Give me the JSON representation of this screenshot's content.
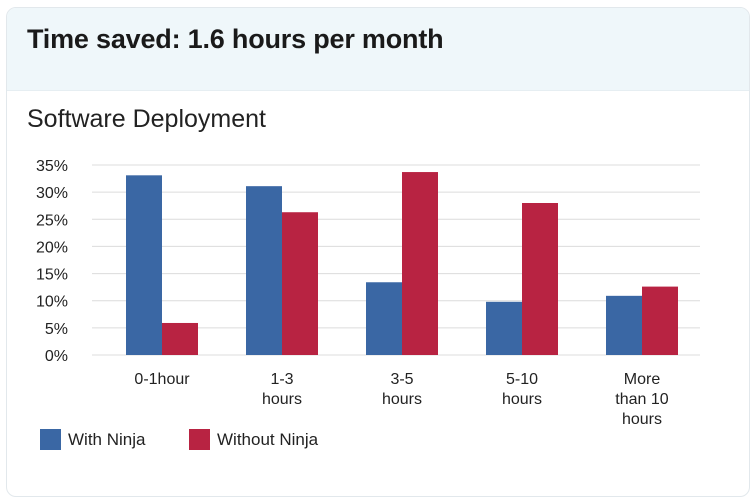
{
  "header": {
    "title": "Time saved: 1.6 hours per month"
  },
  "chart_data": {
    "type": "bar",
    "title": "Software Deployment",
    "categories": [
      [
        "0-1hour"
      ],
      [
        "1-3",
        "hours"
      ],
      [
        "3-5",
        "hours"
      ],
      [
        "5-10",
        "hours"
      ],
      [
        "More",
        "than 10",
        "hours"
      ]
    ],
    "series": [
      {
        "name": "With Ninja",
        "color": "#3a67a4",
        "values": [
          33.1,
          31.1,
          13.4,
          9.8,
          10.9
        ]
      },
      {
        "name": "Without Ninja",
        "color": "#b82342",
        "values": [
          5.9,
          26.3,
          33.7,
          28.0,
          12.6
        ]
      }
    ],
    "yticks": [
      "0%",
      "5%",
      "10%",
      "15%",
      "20%",
      "25%",
      "30%",
      "35%"
    ],
    "ylim": [
      0,
      35
    ],
    "grid": true,
    "legend": "bottom-left"
  }
}
